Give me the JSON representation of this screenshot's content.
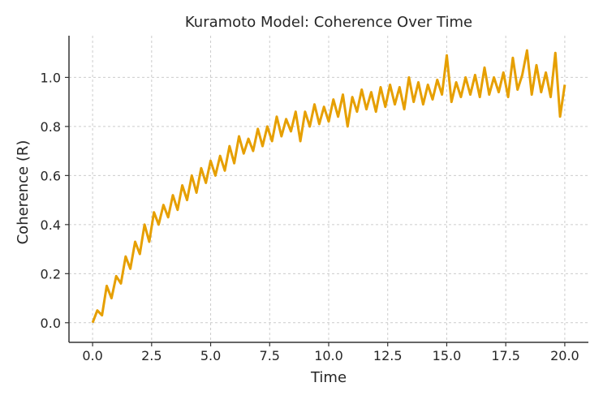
{
  "chart_data": {
    "type": "line",
    "title": "Kuramoto Model: Coherence Over Time",
    "xlabel": "Time",
    "ylabel": "Coherence (R)",
    "xlim": [
      -1.0,
      21.0
    ],
    "ylim": [
      -0.08,
      1.17
    ],
    "xticks": [
      0.0,
      2.5,
      5.0,
      7.5,
      10.0,
      12.5,
      15.0,
      17.5,
      20.0
    ],
    "xtick_labels": [
      "0.0",
      "2.5",
      "5.0",
      "7.5",
      "10.0",
      "12.5",
      "15.0",
      "17.5",
      "20.0"
    ],
    "yticks": [
      0.0,
      0.2,
      0.4,
      0.6,
      0.8,
      1.0
    ],
    "ytick_labels": [
      "0.0",
      "0.2",
      "0.4",
      "0.6",
      "0.8",
      "1.0"
    ],
    "grid": true,
    "legend": "none",
    "series": [
      {
        "name": "Coherence",
        "color": "#E69F00",
        "x_start": 0,
        "x_step": 0.2,
        "values": [
          0.0,
          0.05,
          0.03,
          0.15,
          0.1,
          0.19,
          0.16,
          0.27,
          0.22,
          0.33,
          0.28,
          0.4,
          0.33,
          0.45,
          0.4,
          0.48,
          0.43,
          0.52,
          0.46,
          0.56,
          0.5,
          0.6,
          0.53,
          0.63,
          0.57,
          0.66,
          0.6,
          0.68,
          0.62,
          0.72,
          0.65,
          0.76,
          0.69,
          0.75,
          0.7,
          0.79,
          0.72,
          0.8,
          0.74,
          0.84,
          0.76,
          0.83,
          0.78,
          0.86,
          0.74,
          0.86,
          0.8,
          0.89,
          0.81,
          0.88,
          0.82,
          0.91,
          0.84,
          0.93,
          0.8,
          0.92,
          0.86,
          0.95,
          0.87,
          0.94,
          0.86,
          0.96,
          0.88,
          0.97,
          0.89,
          0.96,
          0.87,
          1.0,
          0.9,
          0.98,
          0.89,
          0.97,
          0.91,
          0.99,
          0.93,
          1.09,
          0.9,
          0.98,
          0.92,
          1.0,
          0.93,
          1.01,
          0.92,
          1.04,
          0.93,
          1.0,
          0.94,
          1.02,
          0.92,
          1.08,
          0.95,
          1.01,
          1.11,
          0.93,
          1.05,
          0.94,
          1.02,
          0.92,
          1.1,
          0.84,
          0.97
        ]
      }
    ]
  }
}
